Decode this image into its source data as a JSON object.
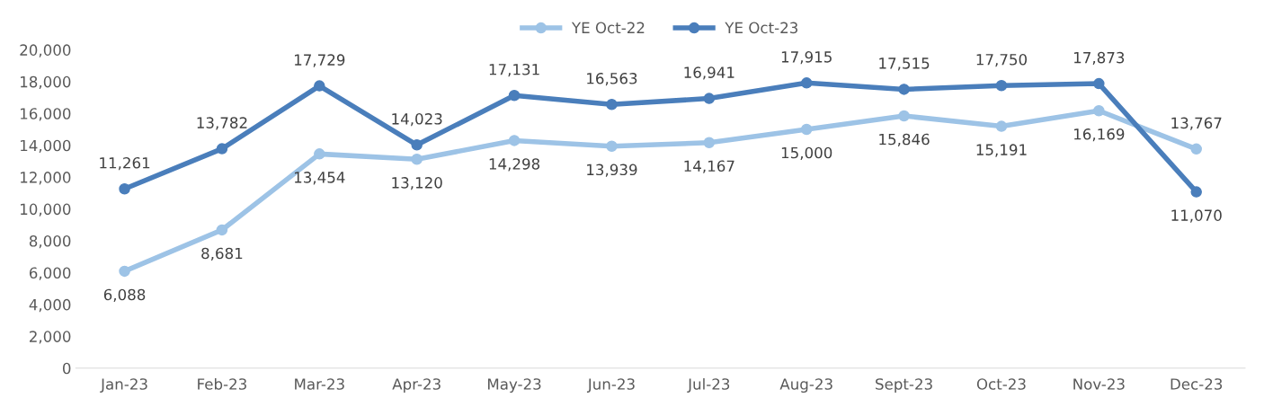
{
  "chart_data": {
    "type": "line",
    "categories": [
      "Jan-23",
      "Feb-23",
      "Mar-23",
      "Apr-23",
      "May-23",
      "Jun-23",
      "Jul-23",
      "Aug-23",
      "Sept-23",
      "Oct-23",
      "Nov-23",
      "Dec-23"
    ],
    "series": [
      {
        "name": "YE Oct-22",
        "color": "#9dc3e6",
        "values": [
          6088,
          8681,
          13454,
          13120,
          14298,
          13939,
          14167,
          15000,
          15846,
          15191,
          16169,
          13767
        ],
        "value_labels": [
          "6,088",
          "8,681",
          "13,454",
          "13,120",
          "14,298",
          "13,939",
          "14,167",
          "15,000",
          "15,846",
          "15,191",
          "16,169",
          "13,767"
        ]
      },
      {
        "name": "YE Oct-23",
        "color": "#4a7ebb",
        "values": [
          11261,
          13782,
          17729,
          14023,
          17131,
          16563,
          16941,
          17915,
          17515,
          17750,
          17873,
          11070
        ],
        "value_labels": [
          "11,261",
          "13,782",
          "17,729",
          "14,023",
          "17,131",
          "16,563",
          "16,941",
          "17,915",
          "17,515",
          "17,750",
          "17,873",
          "11,070"
        ]
      }
    ],
    "ylim": [
      0,
      20000
    ],
    "yticks": [
      0,
      {
        "value": 2000,
        "label": "2,000"
      },
      {
        "value": 4000,
        "label": "4,000"
      },
      {
        "value": 6000,
        "label": "6,000"
      },
      {
        "value": 8000,
        "label": "8,000"
      },
      {
        "value": 10000,
        "label": "10,000"
      },
      {
        "value": 12000,
        "label": "12,000"
      },
      {
        "value": 14000,
        "label": "14,000"
      },
      {
        "value": 16000,
        "label": "16,000"
      },
      {
        "value": 18000,
        "label": "18,000"
      },
      {
        "value": 20000,
        "label": "20,000"
      }
    ],
    "marker": "circle",
    "line_style": "solid",
    "grid": false,
    "legend": "top"
  }
}
